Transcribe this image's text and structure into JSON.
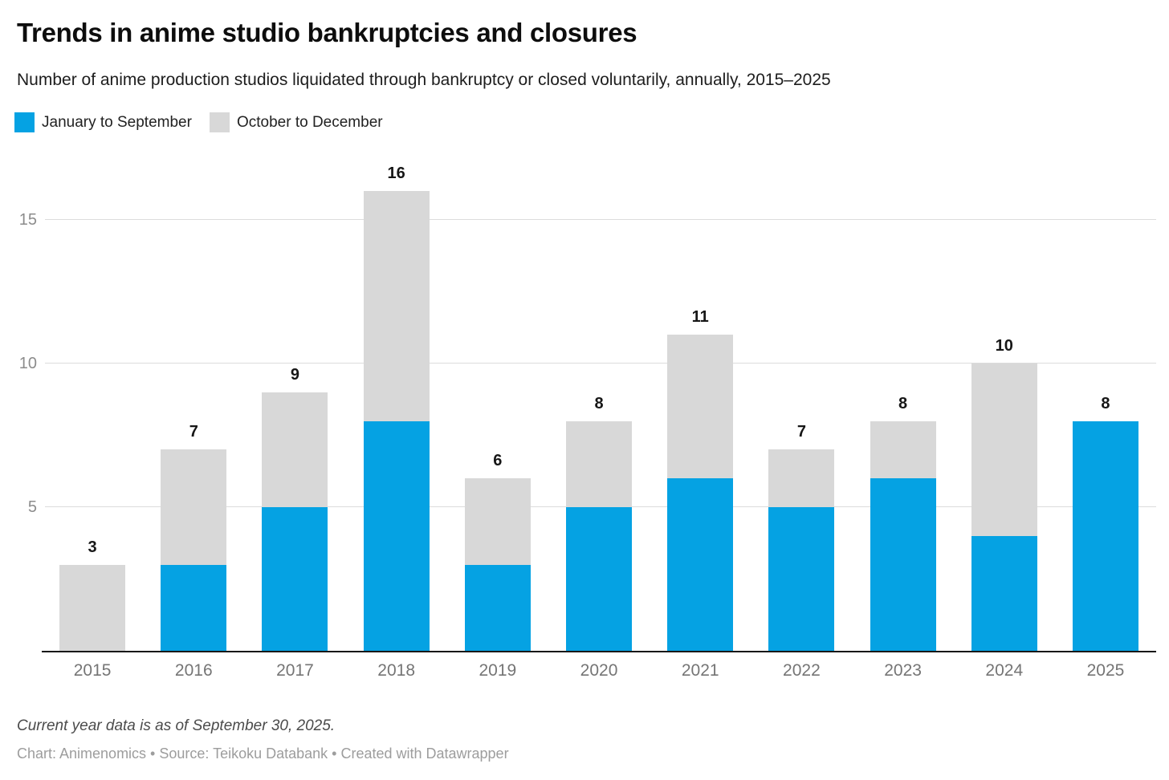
{
  "header": {
    "title": "Trends in anime studio bankruptcies and closures",
    "subtitle": "Number of anime production studios liquidated through bankruptcy or closed voluntarily, annually, 2015–2025"
  },
  "legend": {
    "items": [
      {
        "label": "January to September",
        "color": "#05a2e3"
      },
      {
        "label": "October to December",
        "color": "#d8d8d8"
      }
    ]
  },
  "chart_data": {
    "type": "bar",
    "stacked": true,
    "title": "Trends in anime studio bankruptcies and closures",
    "subtitle": "Number of anime production studios liquidated through bankruptcy or closed voluntarily, annually, 2015–2025",
    "categories": [
      "2015",
      "2016",
      "2017",
      "2018",
      "2019",
      "2020",
      "2021",
      "2022",
      "2023",
      "2024",
      "2025"
    ],
    "series": [
      {
        "name": "January to September",
        "color": "#05a2e3",
        "values": [
          0,
          3,
          5,
          8,
          3,
          5,
          6,
          5,
          6,
          4,
          8
        ]
      },
      {
        "name": "October to December",
        "color": "#d8d8d8",
        "values": [
          3,
          4,
          4,
          8,
          3,
          3,
          5,
          2,
          2,
          6,
          0
        ]
      }
    ],
    "totals": [
      3,
      7,
      9,
      16,
      6,
      8,
      11,
      7,
      8,
      10,
      8
    ],
    "xlabel": "",
    "ylabel": "",
    "yticks": [
      5,
      10,
      15
    ],
    "ylim": [
      0,
      17.1
    ],
    "grid": "horizontal",
    "legend_position": "top-left",
    "total_labels": true
  },
  "footer": {
    "note": "Current year data is as of September 30, 2025.",
    "byline": "Chart: Animenomics • Source: Teikoku Databank • Created with Datawrapper"
  }
}
